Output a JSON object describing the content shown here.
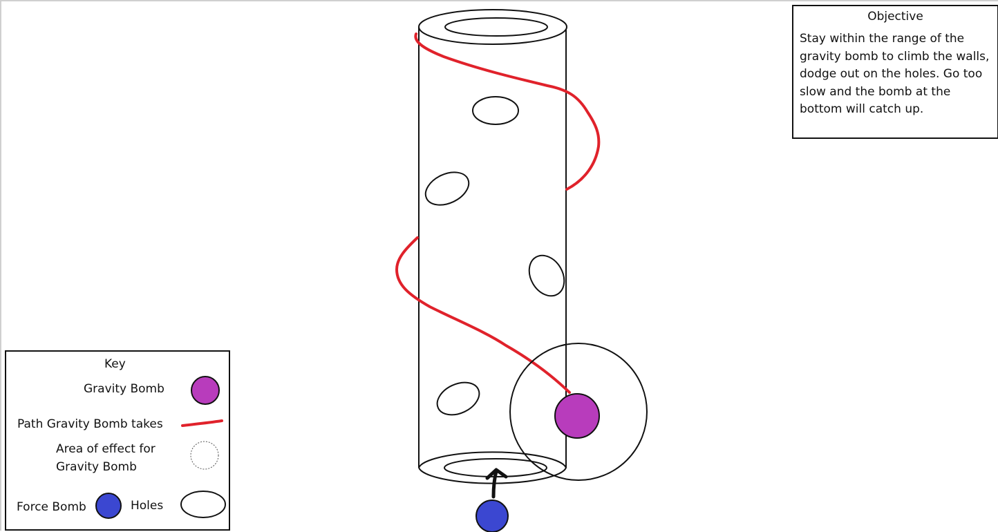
{
  "objective": {
    "title": "Objective",
    "text": "Stay within the range of the gravity bomb to climb the walls, dodge out on the holes. Go too slow and the bomb at the bottom will catch up."
  },
  "key": {
    "title": "Key",
    "gravity_bomb_label": "Gravity Bomb",
    "path_label": "Path Gravity Bomb takes",
    "area_label_line1": "Area of effect for",
    "area_label_line2": "Gravity Bomb",
    "force_bomb_label": "Force Bomb",
    "holes_label": "Holes"
  },
  "colors": {
    "gravity_bomb": "#b83cbc",
    "force_bomb": "#3b47d1",
    "path": "#e0222b",
    "outline": "#111111"
  }
}
